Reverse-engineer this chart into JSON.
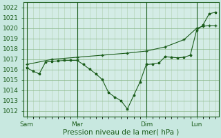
{
  "bg_color": "#c8e8e0",
  "plot_bg_color": "#d4ece6",
  "line_color": "#1a5c1a",
  "grid_major_color": "#8ab88a",
  "grid_minor_color": "#b0d0b0",
  "xlabel": "Pression niveau de la mer( hPa )",
  "xlabel_fontsize": 7.5,
  "tick_fontsize": 6.5,
  "ylim": [
    1011.5,
    1022.5
  ],
  "yticks": [
    1012,
    1013,
    1014,
    1015,
    1016,
    1017,
    1018,
    1019,
    1020,
    1021,
    1022
  ],
  "xtick_labels": [
    "Sam",
    "Mar",
    "Dim",
    "Lun"
  ],
  "xtick_positions": [
    0,
    8,
    19,
    27
  ],
  "vline_positions": [
    0,
    8,
    19,
    27
  ],
  "line1_x": [
    0,
    1,
    2,
    3,
    4,
    5,
    6,
    7,
    8,
    9,
    10,
    11,
    12,
    13,
    14,
    15,
    16,
    17,
    18,
    19,
    20,
    21,
    22,
    23,
    24,
    25,
    26,
    27,
    28,
    29,
    30
  ],
  "line1_y": [
    1016.2,
    1015.85,
    1015.6,
    1016.75,
    1016.8,
    1016.85,
    1016.9,
    1016.9,
    1016.9,
    1016.5,
    1016.05,
    1015.6,
    1015.05,
    1013.8,
    1013.35,
    1013.0,
    1012.2,
    1013.5,
    1014.8,
    1016.5,
    1016.55,
    1016.65,
    1017.25,
    1017.2,
    1017.15,
    1017.2,
    1017.4,
    1019.8,
    1020.3,
    1021.4,
    1021.55
  ],
  "line2_x": [
    0,
    4,
    8,
    12,
    16,
    19,
    22,
    25,
    27,
    28,
    29,
    30
  ],
  "line2_y": [
    1016.5,
    1017.0,
    1017.2,
    1017.4,
    1017.6,
    1017.8,
    1018.2,
    1018.9,
    1020.0,
    1020.2,
    1020.25,
    1020.25
  ],
  "total_points": 30,
  "xlim": [
    -0.5,
    30.5
  ]
}
